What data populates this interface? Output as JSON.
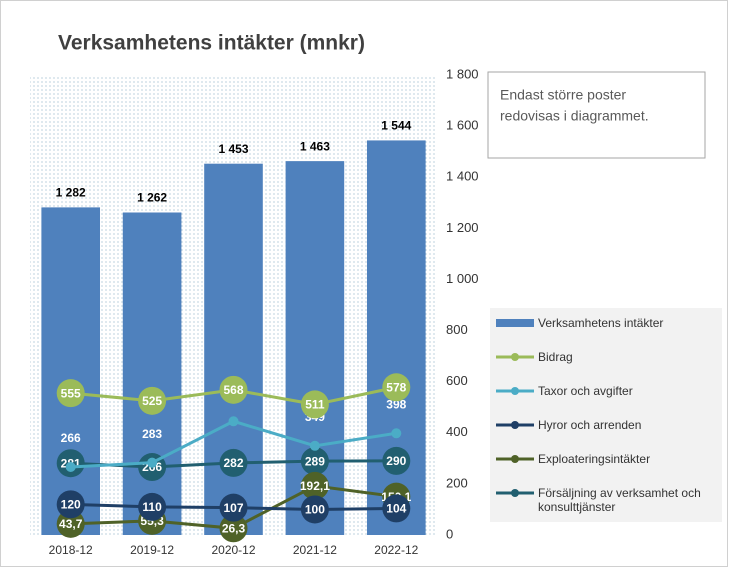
{
  "chart_data": {
    "type": "combo",
    "title": "Verksamhetens intäkter (mnkr)",
    "annotation": [
      "Endast större poster",
      "redovisas i diagrammet."
    ],
    "categories": [
      "2018-12",
      "2019-12",
      "2020-12",
      "2021-12",
      "2022-12"
    ],
    "ylim": [
      0,
      1800
    ],
    "yticks": [
      0,
      200,
      400,
      600,
      800,
      {
        "value": 1000,
        "label": "1 000"
      },
      {
        "value": 1200,
        "label": "1 200"
      },
      {
        "value": 1400,
        "label": "1 400"
      },
      {
        "value": 1600,
        "label": "1 600"
      },
      {
        "value": 1800,
        "label": "1 800"
      }
    ],
    "legend": "right",
    "series": [
      {
        "name": "Verksamhetens intäkter",
        "type": "bar",
        "color": "#4f81bd",
        "values": [
          1282,
          1262,
          1453,
          1463,
          1544
        ],
        "value_labels": [
          "1 282",
          "1 262",
          "1 453",
          "1 463",
          "1 544"
        ]
      },
      {
        "name": "Bidrag",
        "type": "line",
        "color": "#9bbb59",
        "values": [
          555,
          525,
          568,
          511,
          578
        ]
      },
      {
        "name": "Taxor och avgifter",
        "type": "line",
        "color": "#4bacc6",
        "values": [
          266,
          283,
          445,
          349,
          398
        ]
      },
      {
        "name": "Hyror och arrenden",
        "type": "line",
        "color": "#1f3f66",
        "values": [
          120,
          110,
          107,
          100,
          104
        ]
      },
      {
        "name": "Exploateringsintäkter",
        "type": "line",
        "color": "#4f6228",
        "values": [
          43.7,
          55.3,
          26.3,
          192.1,
          150.1
        ],
        "value_labels": [
          "43,7",
          "55,3",
          "26,3",
          "192,1",
          "150,1"
        ]
      },
      {
        "name": "Försäljning av verksamhet och konsulttjänster",
        "type": "line",
        "color": "#215f70",
        "values": [
          281,
          266,
          282,
          289,
          290
        ]
      }
    ]
  }
}
